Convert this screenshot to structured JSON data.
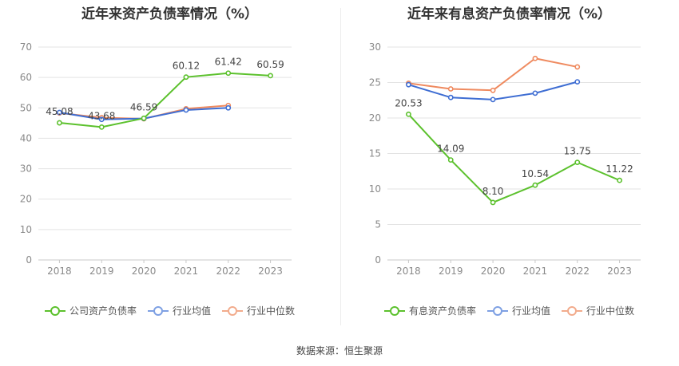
{
  "source_text": "数据来源：恒生聚源",
  "chart_data": [
    {
      "type": "line",
      "title": "近年来资产负债率情况（%）",
      "categories": [
        "2018",
        "2019",
        "2020",
        "2021",
        "2022",
        "2023"
      ],
      "ylim": [
        0,
        70
      ],
      "yticks": [
        0,
        10,
        20,
        30,
        40,
        50,
        60,
        70
      ],
      "grid": true,
      "legend_position": "bottom",
      "series": [
        {
          "name": "公司资产负债率",
          "color": "#5cc12d",
          "values": [
            45.08,
            43.68,
            46.59,
            60.12,
            61.42,
            60.59
          ],
          "labels": [
            "45.08",
            "43.68",
            "46.59",
            "60.12",
            "61.42",
            "60.59"
          ]
        },
        {
          "name": "行业均值",
          "color": "#3f6ed3",
          "values": [
            48.5,
            46.2,
            46.5,
            49.3,
            50.0,
            null
          ],
          "labels": []
        },
        {
          "name": "行业中位数",
          "color": "#ef8a5f",
          "values": [
            48.3,
            46.8,
            46.4,
            49.7,
            50.8,
            null
          ],
          "labels": []
        }
      ]
    },
    {
      "type": "line",
      "title": "近年来有息资产负债率情况（%）",
      "categories": [
        "2018",
        "2019",
        "2020",
        "2021",
        "2022",
        "2023"
      ],
      "ylim": [
        0,
        30
      ],
      "yticks": [
        0,
        5,
        10,
        15,
        20,
        25,
        30
      ],
      "grid": true,
      "legend_position": "bottom",
      "series": [
        {
          "name": "有息资产负债率",
          "color": "#5cc12d",
          "values": [
            20.53,
            14.09,
            8.1,
            10.54,
            13.75,
            11.22
          ],
          "labels": [
            "20.53",
            "14.09",
            "8.10",
            "10.54",
            "13.75",
            "11.22"
          ]
        },
        {
          "name": "行业均值",
          "color": "#3f6ed3",
          "values": [
            24.7,
            22.9,
            22.6,
            23.5,
            25.1,
            null
          ],
          "labels": []
        },
        {
          "name": "行业中位数",
          "color": "#ef8a5f",
          "values": [
            24.9,
            24.1,
            23.9,
            28.4,
            27.2,
            null
          ],
          "labels": []
        }
      ]
    }
  ]
}
